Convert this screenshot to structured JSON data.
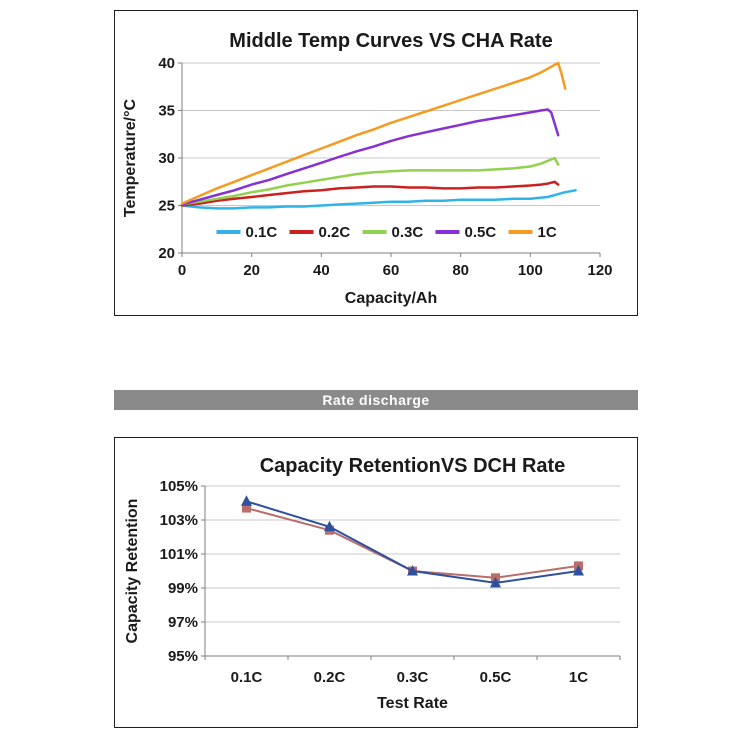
{
  "banner": {
    "label": "Rate discharge",
    "background": "#8a8a8a",
    "text_color": "#ffffff"
  },
  "chart_data": [
    {
      "type": "line",
      "title": "Middle Temp Curves VS CHA Rate",
      "xlabel": "Capacity/Ah",
      "ylabel": "Temperature/°C",
      "xlim": [
        0,
        120
      ],
      "ylim": [
        20,
        40
      ],
      "xtick_values": [
        0,
        20,
        40,
        60,
        80,
        100,
        120
      ],
      "xtick_labels": [
        "0",
        "20",
        "40",
        "60",
        "80",
        "100",
        "120"
      ],
      "ytick_values": [
        20,
        25,
        30,
        35,
        40
      ],
      "ytick_labels": [
        "20",
        "25",
        "30",
        "35",
        "40"
      ],
      "grid": true,
      "legend": true,
      "legend_position": "bottom-inside",
      "series": [
        {
          "name": "0.1C",
          "color": "#30b4e8",
          "width": 2.5,
          "x": [
            0,
            5,
            10,
            15,
            20,
            25,
            30,
            35,
            40,
            45,
            50,
            55,
            60,
            65,
            70,
            75,
            80,
            85,
            90,
            95,
            100,
            105,
            108,
            110,
            113
          ],
          "y": [
            25.0,
            24.8,
            24.7,
            24.7,
            24.8,
            24.8,
            24.9,
            24.9,
            25.0,
            25.1,
            25.2,
            25.3,
            25.4,
            25.4,
            25.5,
            25.5,
            25.6,
            25.6,
            25.6,
            25.7,
            25.7,
            25.9,
            26.2,
            26.4,
            26.6
          ]
        },
        {
          "name": "0.2C",
          "color": "#cc2020",
          "width": 2.5,
          "x": [
            0,
            5,
            10,
            15,
            20,
            25,
            30,
            35,
            40,
            45,
            50,
            55,
            60,
            65,
            70,
            75,
            80,
            85,
            90,
            95,
            100,
            103,
            105,
            107,
            108
          ],
          "y": [
            25.0,
            25.2,
            25.5,
            25.7,
            25.9,
            26.1,
            26.3,
            26.5,
            26.6,
            26.8,
            26.9,
            27.0,
            27.0,
            26.9,
            26.9,
            26.8,
            26.8,
            26.9,
            26.9,
            27.0,
            27.1,
            27.2,
            27.3,
            27.5,
            27.2
          ]
        },
        {
          "name": "0.3C",
          "color": "#92d050",
          "width": 2.5,
          "x": [
            0,
            5,
            10,
            15,
            20,
            25,
            30,
            35,
            40,
            45,
            50,
            55,
            60,
            65,
            70,
            75,
            80,
            85,
            90,
            95,
            100,
            103,
            105,
            107,
            108
          ],
          "y": [
            25.1,
            25.4,
            25.7,
            26.0,
            26.4,
            26.7,
            27.1,
            27.4,
            27.7,
            28.0,
            28.3,
            28.5,
            28.6,
            28.7,
            28.7,
            28.7,
            28.7,
            28.7,
            28.8,
            28.9,
            29.1,
            29.4,
            29.7,
            30.0,
            29.3
          ]
        },
        {
          "name": "0.5C",
          "color": "#8531d4",
          "width": 2.5,
          "x": [
            0,
            5,
            10,
            15,
            20,
            25,
            30,
            35,
            40,
            45,
            50,
            55,
            60,
            65,
            70,
            75,
            80,
            85,
            90,
            95,
            100,
            103,
            105,
            106,
            107,
            108
          ],
          "y": [
            25.1,
            25.6,
            26.1,
            26.6,
            27.2,
            27.7,
            28.3,
            28.9,
            29.5,
            30.1,
            30.7,
            31.2,
            31.8,
            32.3,
            32.7,
            33.1,
            33.5,
            33.9,
            34.2,
            34.5,
            34.8,
            35.0,
            35.1,
            34.8,
            33.6,
            32.4
          ]
        },
        {
          "name": "1C",
          "color": "#f59b22",
          "width": 2.5,
          "x": [
            0,
            5,
            10,
            15,
            20,
            25,
            30,
            35,
            40,
            45,
            50,
            55,
            60,
            65,
            70,
            75,
            80,
            85,
            90,
            95,
            100,
            103,
            105,
            107,
            108,
            109,
            110
          ],
          "y": [
            25.2,
            26.0,
            26.8,
            27.5,
            28.2,
            28.9,
            29.6,
            30.3,
            31.0,
            31.7,
            32.4,
            33.0,
            33.7,
            34.3,
            34.9,
            35.5,
            36.1,
            36.7,
            37.3,
            37.9,
            38.5,
            39.0,
            39.4,
            39.8,
            40.0,
            38.8,
            37.3
          ]
        }
      ]
    },
    {
      "type": "line",
      "title": "Capacity RetentionVS DCH  Rate",
      "xlabel": "Test Rate",
      "ylabel": "Capacity Retention",
      "categories": [
        "0.1C",
        "0.2C",
        "0.3C",
        "0.5C",
        "1C"
      ],
      "ylim": [
        95,
        105
      ],
      "ytick_values": [
        95,
        97,
        99,
        101,
        103,
        105
      ],
      "ytick_labels": [
        "95%",
        "97%",
        "99%",
        "101%",
        "103%",
        "105%"
      ],
      "grid": true,
      "legend": false,
      "series": [
        {
          "color": "#b96e6c",
          "marker": "square",
          "width": 2,
          "values": [
            103.7,
            102.4,
            100.0,
            99.6,
            100.3
          ]
        },
        {
          "color": "#2f4f9f",
          "marker": "triangle",
          "width": 2,
          "values": [
            104.1,
            102.6,
            100.0,
            99.3,
            100.0
          ]
        }
      ]
    }
  ]
}
